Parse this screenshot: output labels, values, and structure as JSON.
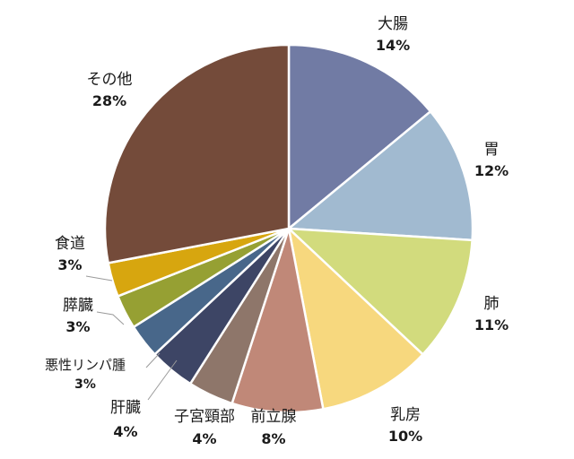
{
  "chart_data": {
    "type": "pie",
    "title": "",
    "slices": [
      {
        "label": "大腸",
        "value": 14,
        "value_label": "14%",
        "color": "#717ba4"
      },
      {
        "label": "胃",
        "value": 12,
        "value_label": "12%",
        "color": "#a1bad0"
      },
      {
        "label": "肺",
        "value": 11,
        "value_label": "11%",
        "color": "#d2db7d"
      },
      {
        "label": "乳房",
        "value": 10,
        "value_label": "10%",
        "color": "#f7d87e"
      },
      {
        "label": "前立腺",
        "value": 8,
        "value_label": "8%",
        "color": "#c08878"
      },
      {
        "label": "子宮頸部",
        "value": 4,
        "value_label": "4%",
        "color": "#8e766a"
      },
      {
        "label": "肝臓",
        "value": 4,
        "value_label": "4%",
        "color": "#3d4565"
      },
      {
        "label": "悪性リンパ腫",
        "value": 3,
        "value_label": "3%",
        "color": "#48678a"
      },
      {
        "label": "膵臓",
        "value": 3,
        "value_label": "3%",
        "color": "#96a033"
      },
      {
        "label": "食道",
        "value": 3,
        "value_label": "3%",
        "color": "#d7a60f"
      },
      {
        "label": "その他",
        "value": 28,
        "value_label": "28%",
        "color": "#744b3a"
      }
    ],
    "start_angle_deg": 0,
    "direction": "clockwise",
    "legend": "none"
  }
}
